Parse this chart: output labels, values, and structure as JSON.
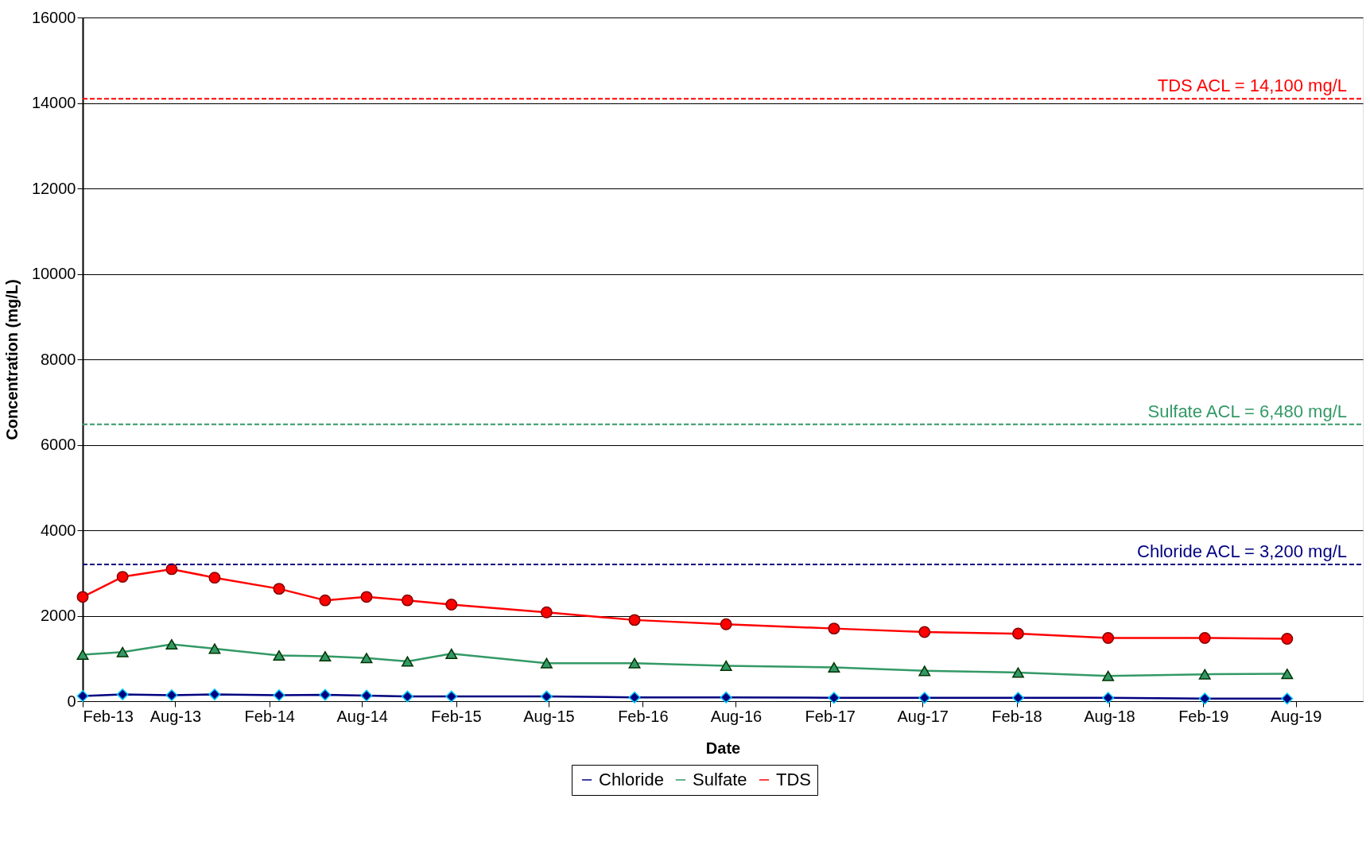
{
  "chart_data": {
    "type": "line",
    "xlabel": "Date",
    "ylabel": "Concentration (mg/L)",
    "x": [
      "2013-02-01",
      "2013-04-20",
      "2013-07-25",
      "2013-10-17",
      "2014-02-20",
      "2014-05-21",
      "2014-08-10",
      "2014-10-29",
      "2015-01-23",
      "2015-07-28",
      "2016-01-16",
      "2016-07-13",
      "2017-02-09",
      "2017-08-05",
      "2018-02-04",
      "2018-07-30",
      "2019-02-04",
      "2019-07-15"
    ],
    "series": [
      {
        "name": "Chloride",
        "color": "#000080",
        "marker": "diamond",
        "values": [
          120,
          160,
          140,
          160,
          140,
          150,
          130,
          110,
          110,
          110,
          90,
          90,
          80,
          80,
          80,
          80,
          60,
          60
        ]
      },
      {
        "name": "Sulfate",
        "color": "#339966",
        "marker": "triangle",
        "values": [
          1090,
          1150,
          1330,
          1230,
          1070,
          1050,
          1010,
          930,
          1110,
          890,
          890,
          830,
          790,
          710,
          670,
          590,
          630,
          640
        ]
      },
      {
        "name": "TDS",
        "color": "#ff0000",
        "marker": "circle",
        "values": [
          2440,
          2910,
          3090,
          2890,
          2630,
          2360,
          2440,
          2360,
          2260,
          2080,
          1900,
          1800,
          1700,
          1620,
          1580,
          1480,
          1480,
          1460
        ]
      }
    ],
    "xlim": [
      "2013-02-01",
      "2019-12-10"
    ],
    "xticks": [
      {
        "value": "2013-02-01",
        "label": "Feb-13"
      },
      {
        "value": "2013-08-01",
        "label": "Aug-13"
      },
      {
        "value": "2014-02-01",
        "label": "Feb-14"
      },
      {
        "value": "2014-08-01",
        "label": "Aug-14"
      },
      {
        "value": "2015-02-01",
        "label": "Feb-15"
      },
      {
        "value": "2015-08-01",
        "label": "Aug-15"
      },
      {
        "value": "2016-02-01",
        "label": "Feb-16"
      },
      {
        "value": "2016-08-01",
        "label": "Aug-16"
      },
      {
        "value": "2017-02-01",
        "label": "Feb-17"
      },
      {
        "value": "2017-08-01",
        "label": "Aug-17"
      },
      {
        "value": "2018-02-01",
        "label": "Feb-18"
      },
      {
        "value": "2018-08-01",
        "label": "Aug-18"
      },
      {
        "value": "2019-02-01",
        "label": "Feb-19"
      },
      {
        "value": "2019-08-01",
        "label": "Aug-19"
      }
    ],
    "ylim": [
      0,
      16000
    ],
    "yticks": [
      0,
      2000,
      4000,
      6000,
      8000,
      10000,
      12000,
      14000,
      16000
    ],
    "ref_lines": [
      {
        "axis": "y",
        "value": 14100,
        "label": "TDS ACL = 14,100 mg/L",
        "color": "#ff0000",
        "line_style": "dashed"
      },
      {
        "axis": "y",
        "value": 6480,
        "label": "Sulfate ACL = 6,480 mg/L",
        "color": "#339966",
        "line_style": "dashed"
      },
      {
        "axis": "y",
        "value": 3200,
        "label": "Chloride ACL = 3,200 mg/L",
        "color": "#000080",
        "line_style": "dashed"
      }
    ],
    "grid": "y",
    "legend": "bottom",
    "line_style": "solid"
  }
}
